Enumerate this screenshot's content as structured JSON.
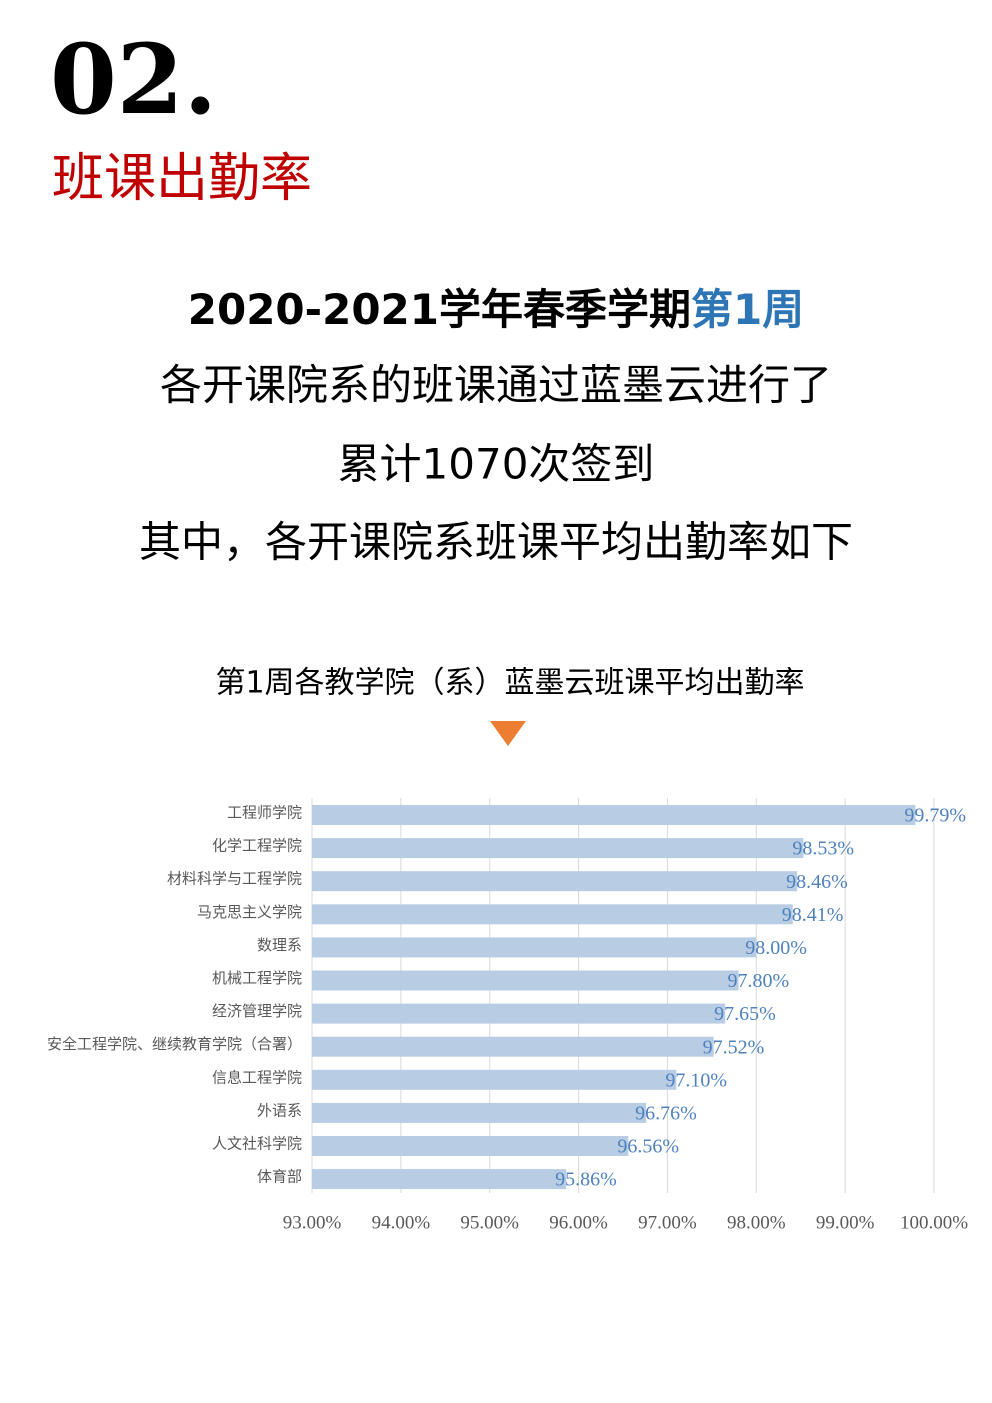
{
  "header": {
    "number": "02.",
    "title": "班课出勤率"
  },
  "intro": {
    "line1": "2020-2021学年春季学期",
    "line1_highlight": "第1周",
    "lines": [
      "各开课院系的班课通过蓝墨云进行了",
      "累计1070次签到",
      "其中，各开课院系班课平均出勤率如下"
    ]
  },
  "chart_data": {
    "type": "hbar",
    "title": "第1周各教学院（系）蓝墨云班课平均出勤率",
    "categories": [
      "工程师学院",
      "化学工程学院",
      "材料科学与工程学院",
      "马克思主义学院",
      "数理系",
      "机械工程学院",
      "经济管理学院",
      "安全工程学院、继续教育学院（合署）",
      "信息工程学院",
      "外语系",
      "人文社科学院",
      "体育部"
    ],
    "values": [
      99.79,
      98.53,
      98.46,
      98.41,
      98.0,
      97.8,
      97.65,
      97.52,
      97.1,
      96.76,
      96.56,
      95.86
    ],
    "value_labels": [
      "99.79%",
      "98.53%",
      "98.46%",
      "98.41%",
      "98.00%",
      "97.80%",
      "97.65%",
      "97.52%",
      "97.10%",
      "96.76%",
      "96.56%",
      "95.86%"
    ],
    "color": "#b8cce4",
    "xlim": [
      93,
      100
    ],
    "xticks": [
      {
        "value": 93,
        "label": "93.00%"
      },
      {
        "value": 94,
        "label": "94.00%"
      },
      {
        "value": 95,
        "label": "95.00%"
      },
      {
        "value": 96,
        "label": "96.00%"
      },
      {
        "value": 97,
        "label": "97.00%"
      },
      {
        "value": 98,
        "label": "98.00%"
      },
      {
        "value": 99,
        "label": "99.00%"
      },
      {
        "value": 100,
        "label": "100.00%"
      }
    ],
    "grid": true
  }
}
